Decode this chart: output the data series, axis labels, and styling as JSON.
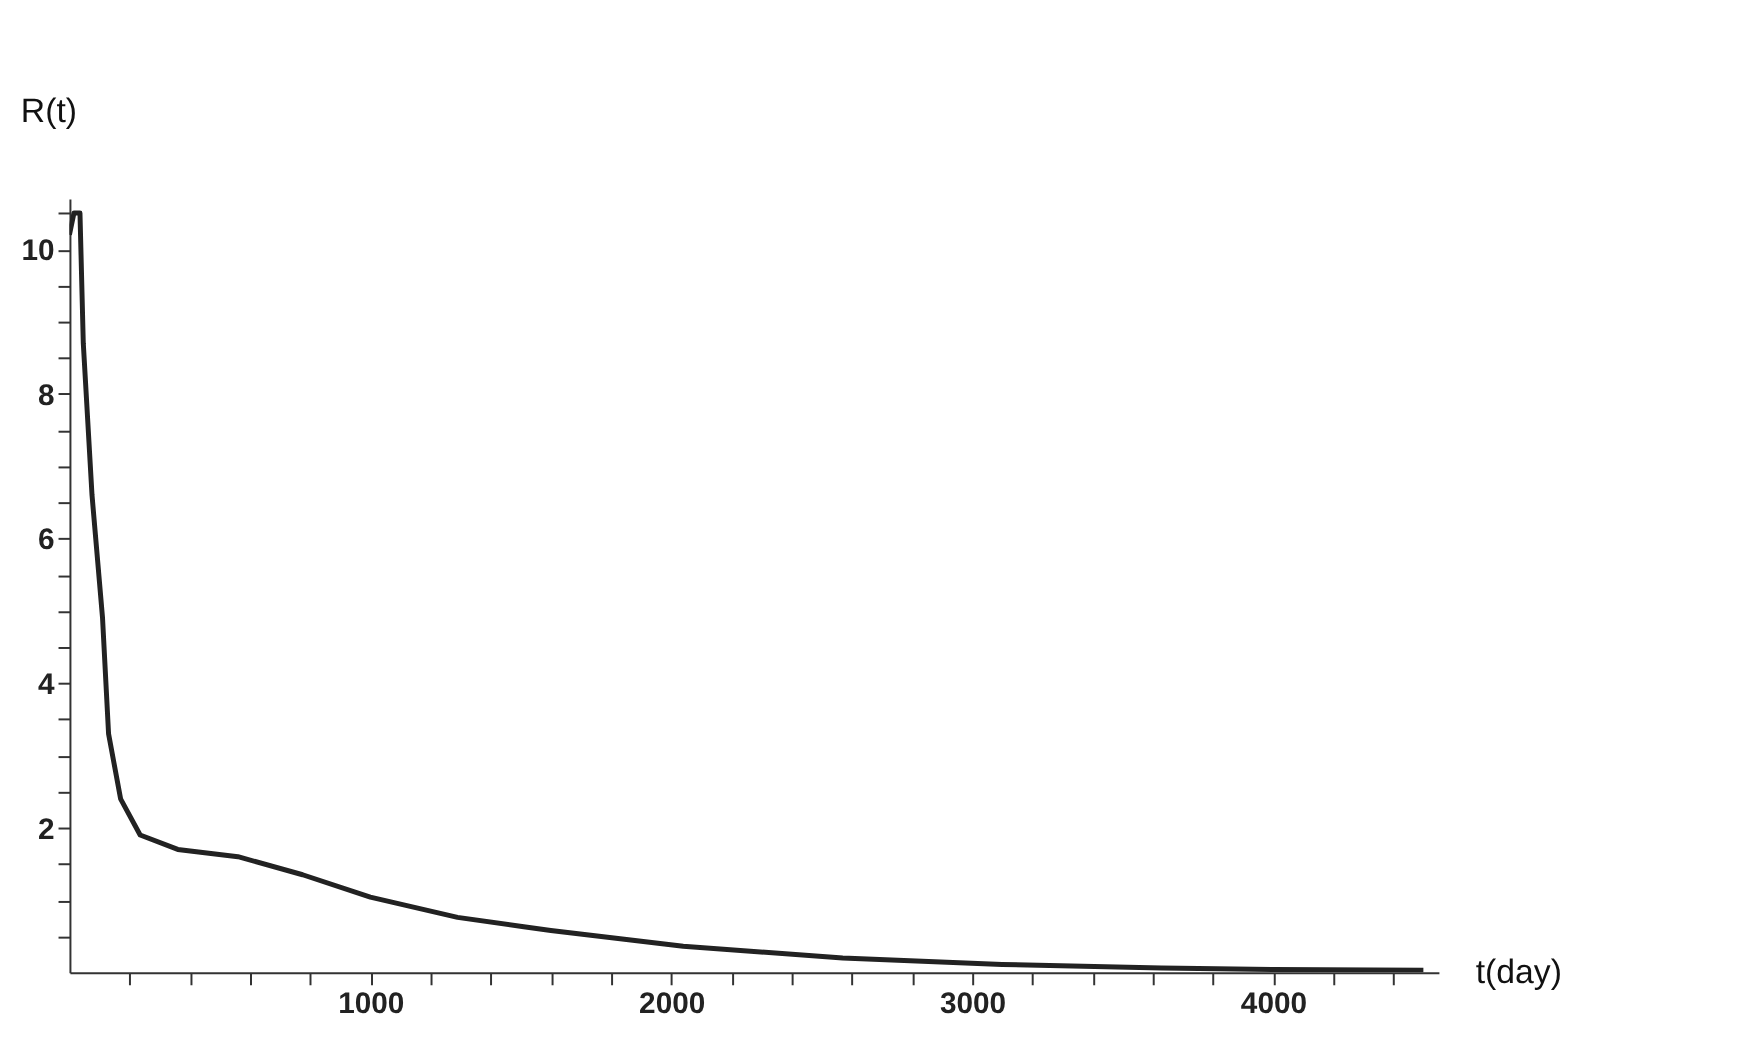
{
  "chart_data": {
    "type": "line",
    "xlabel": "t(day)",
    "ylabel": "R(t)",
    "x": [
      0,
      15,
      35,
      46,
      75,
      110,
      130,
      170,
      235,
      360,
      560,
      775,
      1000,
      1290,
      1510,
      1600,
      2040,
      2570,
      3100,
      3630,
      4000,
      4500
    ],
    "series": [
      {
        "color": "#222222",
        "values": [
          10.2,
          10.5,
          10.5,
          8.7,
          6.6,
          4.9,
          3.3,
          2.4,
          1.9,
          1.7,
          1.6,
          1.35,
          1.04,
          0.76,
          0.63,
          0.58,
          0.36,
          0.2,
          0.11,
          0.06,
          0.04,
          0.03
        ]
      }
    ],
    "xlim": [
      0,
      4550
    ],
    "ylim": [
      0,
      10.7
    ],
    "xticks": [
      {
        "value": 200,
        "label": null
      },
      {
        "value": 400,
        "label": null
      },
      {
        "value": 600,
        "label": null
      },
      {
        "value": 800,
        "label": null
      },
      1000,
      {
        "value": 1200,
        "label": null
      },
      {
        "value": 1400,
        "label": null
      },
      {
        "value": 1600,
        "label": null
      },
      {
        "value": 1800,
        "label": null
      },
      2000,
      {
        "value": 2200,
        "label": null
      },
      {
        "value": 2400,
        "label": null
      },
      {
        "value": 2600,
        "label": null
      },
      {
        "value": 2800,
        "label": null
      },
      3000,
      {
        "value": 3200,
        "label": null
      },
      {
        "value": 3400,
        "label": null
      },
      {
        "value": 3600,
        "label": null
      },
      {
        "value": 3800,
        "label": null
      },
      4000,
      {
        "value": 4200,
        "label": null
      },
      {
        "value": 4400,
        "label": null
      }
    ],
    "yticks": [
      {
        "value": 0.5,
        "label": null
      },
      {
        "value": 1,
        "label": null
      },
      {
        "value": 1.5,
        "label": null
      },
      2,
      {
        "value": 2.5,
        "label": null
      },
      {
        "value": 3,
        "label": null
      },
      {
        "value": 3.5,
        "label": null
      },
      4,
      {
        "value": 4.5,
        "label": null
      },
      {
        "value": 5,
        "label": null
      },
      {
        "value": 5.5,
        "label": null
      },
      6,
      {
        "value": 6.5,
        "label": null
      },
      {
        "value": 7,
        "label": null
      },
      {
        "value": 7.5,
        "label": null
      },
      8,
      {
        "value": 8.5,
        "label": null
      },
      {
        "value": 9,
        "label": null
      },
      {
        "value": 9.5,
        "label": null
      },
      10,
      {
        "value": 10.5,
        "label": null
      }
    ],
    "grid": false,
    "line_style": "solid"
  }
}
